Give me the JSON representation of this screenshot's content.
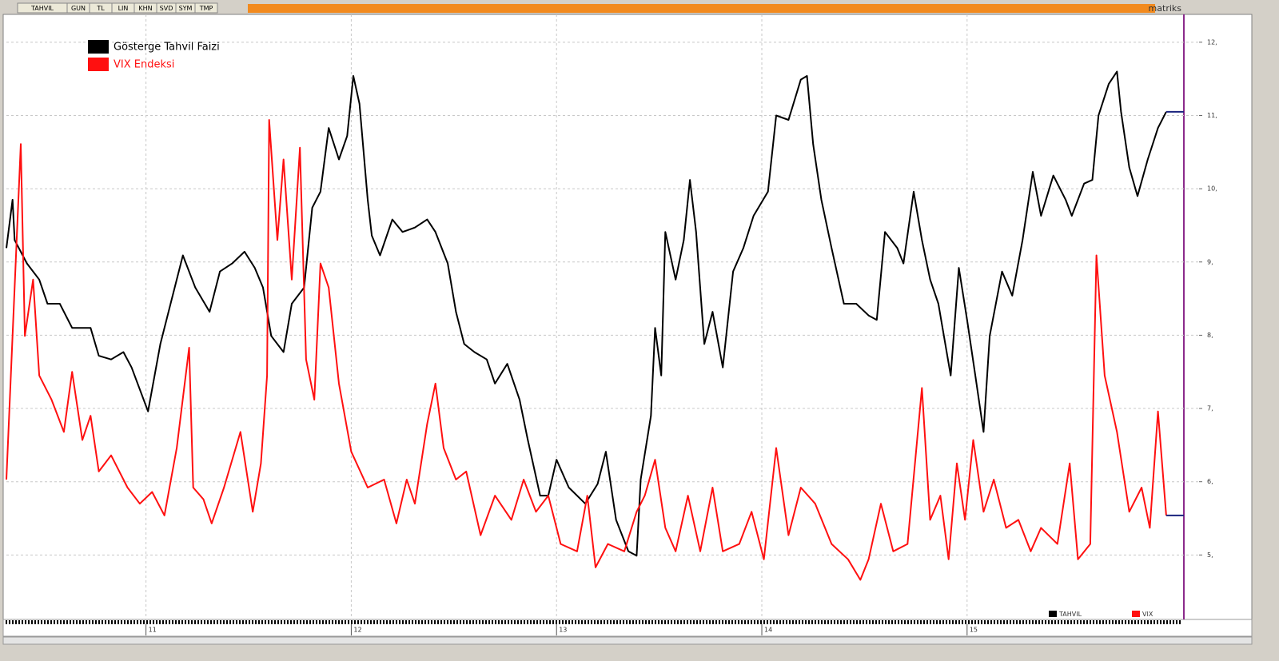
{
  "toolbar": {
    "buttons": [
      "TAHVIL",
      "GUN",
      "TL",
      "LIN",
      "KHN",
      "SVD",
      "SYM",
      "TMP"
    ],
    "brand": "matriks"
  },
  "chart_data": {
    "type": "line",
    "series": [
      {
        "name": "Gösterge Tahvil Faizi",
        "short_name": "TAHVIL",
        "color": "#000000",
        "x": [
          10.32,
          10.35,
          10.36,
          10.42,
          10.48,
          10.52,
          10.58,
          10.64,
          10.73,
          10.77,
          10.83,
          10.89,
          10.93,
          11.01,
          11.07,
          11.12,
          11.18,
          11.24,
          11.31,
          11.36,
          11.42,
          11.48,
          11.53,
          11.57,
          11.61,
          11.67,
          11.71,
          11.77,
          11.81,
          11.85,
          11.89,
          11.94,
          11.98,
          12.01,
          12.04,
          12.08,
          12.1,
          12.14,
          12.2,
          12.25,
          12.31,
          12.37,
          12.41,
          12.47,
          12.51,
          12.55,
          12.6,
          12.66,
          12.7,
          12.76,
          12.82,
          12.86,
          12.92,
          12.96,
          13.0,
          13.06,
          13.14,
          13.2,
          13.24,
          13.29,
          13.35,
          13.39,
          13.41,
          13.46,
          13.48,
          13.51,
          13.53,
          13.58,
          13.62,
          13.65,
          13.68,
          13.72,
          13.76,
          13.81,
          13.86,
          13.91,
          13.96,
          14.03,
          14.07,
          14.13,
          14.19,
          14.22,
          14.25,
          14.29,
          14.34,
          14.4,
          14.46,
          14.52,
          14.56,
          14.6,
          14.66,
          14.69,
          14.74,
          14.78,
          14.82,
          14.86,
          14.92,
          14.96,
          15.0,
          15.04,
          15.08,
          15.11,
          15.17,
          15.22,
          15.27,
          15.32,
          15.36,
          15.42,
          15.48,
          15.51,
          15.57,
          15.61,
          15.64,
          15.69,
          15.73,
          15.75,
          15.79,
          15.83,
          15.88,
          15.93,
          15.97
        ],
        "values": [
          9.19,
          9.85,
          9.3,
          8.98,
          8.76,
          8.43,
          8.43,
          8.1,
          8.1,
          7.72,
          7.67,
          7.77,
          7.56,
          6.96,
          7.88,
          8.43,
          9.09,
          8.65,
          8.32,
          8.87,
          8.98,
          9.14,
          8.92,
          8.65,
          7.99,
          7.77,
          8.43,
          8.65,
          9.74,
          9.96,
          10.83,
          10.4,
          10.72,
          11.54,
          11.16,
          9.85,
          9.36,
          9.09,
          9.58,
          9.41,
          9.47,
          9.58,
          9.41,
          8.98,
          8.32,
          7.88,
          7.77,
          7.67,
          7.34,
          7.61,
          7.12,
          6.57,
          5.81,
          5.81,
          6.3,
          5.92,
          5.7,
          5.97,
          6.41,
          5.48,
          5.05,
          4.99,
          6.03,
          6.9,
          8.1,
          7.45,
          9.41,
          8.76,
          9.3,
          10.12,
          9.41,
          7.88,
          8.32,
          7.56,
          8.87,
          9.19,
          9.63,
          9.96,
          11.0,
          10.94,
          11.49,
          11.54,
          10.61,
          9.85,
          9.19,
          8.43,
          8.43,
          8.27,
          8.21,
          9.41,
          9.19,
          8.98,
          9.96,
          9.3,
          8.76,
          8.43,
          7.45,
          8.92,
          8.21,
          7.45,
          6.68,
          7.99,
          8.87,
          8.54,
          9.3,
          10.23,
          9.63,
          10.18,
          9.85,
          9.63,
          10.07,
          10.12,
          11.0,
          11.43,
          11.6,
          11.05,
          10.29,
          9.9,
          10.4,
          10.83,
          11.05
        ]
      },
      {
        "name": "VIX Endeksi",
        "short_name": "VIX",
        "color": "#ff1010",
        "x": [
          10.32,
          10.35,
          10.39,
          10.41,
          10.45,
          10.48,
          10.54,
          10.6,
          10.64,
          10.69,
          10.73,
          10.77,
          10.83,
          10.91,
          10.97,
          11.03,
          11.09,
          11.15,
          11.21,
          11.23,
          11.28,
          11.32,
          11.38,
          11.46,
          11.52,
          11.56,
          11.59,
          11.6,
          11.64,
          11.67,
          11.71,
          11.75,
          11.78,
          11.82,
          11.85,
          11.89,
          11.94,
          12.0,
          12.08,
          12.16,
          12.22,
          12.27,
          12.31,
          12.37,
          12.41,
          12.45,
          12.51,
          12.56,
          12.63,
          12.7,
          12.78,
          12.84,
          12.9,
          12.96,
          13.02,
          13.1,
          13.15,
          13.19,
          13.25,
          13.33,
          13.39,
          13.43,
          13.48,
          13.53,
          13.58,
          13.64,
          13.7,
          13.76,
          13.81,
          13.89,
          13.95,
          14.01,
          14.07,
          14.13,
          14.19,
          14.26,
          14.34,
          14.42,
          14.48,
          14.52,
          14.58,
          14.64,
          14.71,
          14.78,
          14.82,
          14.87,
          14.91,
          14.95,
          14.99,
          15.03,
          15.08,
          15.13,
          15.19,
          15.25,
          15.31,
          15.36,
          15.44,
          15.5,
          15.54,
          15.6,
          15.63,
          15.67,
          15.73,
          15.79,
          15.85,
          15.89,
          15.93,
          15.97
        ],
        "values": [
          6.03,
          7.99,
          10.61,
          7.99,
          8.76,
          7.45,
          7.12,
          6.68,
          7.5,
          6.57,
          6.9,
          6.14,
          6.36,
          5.92,
          5.7,
          5.86,
          5.54,
          6.46,
          7.83,
          5.92,
          5.76,
          5.43,
          5.92,
          6.68,
          5.59,
          6.25,
          7.45,
          10.94,
          9.3,
          10.4,
          8.76,
          10.56,
          7.67,
          7.12,
          8.98,
          8.65,
          7.34,
          6.41,
          5.92,
          6.03,
          5.43,
          6.03,
          5.7,
          6.79,
          7.34,
          6.46,
          6.03,
          6.14,
          5.27,
          5.81,
          5.48,
          6.03,
          5.59,
          5.81,
          5.15,
          5.05,
          5.81,
          4.83,
          5.15,
          5.05,
          5.59,
          5.81,
          6.3,
          5.37,
          5.05,
          5.81,
          5.05,
          5.92,
          5.05,
          5.15,
          5.59,
          4.94,
          6.46,
          5.27,
          5.92,
          5.7,
          5.15,
          4.94,
          4.66,
          4.94,
          5.7,
          5.05,
          5.15,
          7.28,
          5.48,
          5.81,
          4.94,
          6.25,
          5.48,
          6.57,
          5.59,
          6.03,
          5.37,
          5.48,
          5.05,
          5.37,
          5.15,
          6.25,
          4.94,
          5.15,
          9.09,
          7.45,
          6.68,
          5.59,
          5.92,
          5.37,
          6.96,
          5.54
        ]
      }
    ],
    "xlim": [
      10.32,
      16.13
    ],
    "xticks": [
      11,
      12,
      13,
      14,
      15
    ],
    "ylim": [
      4.12,
      12.38
    ],
    "yticks": [
      {
        "value": 5,
        "label": "5,"
      },
      {
        "value": 6,
        "label": "6,"
      },
      {
        "value": 7,
        "label": "7,"
      },
      {
        "value": 8,
        "label": "8,"
      },
      {
        "value": 9,
        "label": "9,"
      },
      {
        "value": 10,
        "label": "10,"
      },
      {
        "value": 11,
        "label": "11,"
      },
      {
        "value": 12,
        "label": "12,"
      }
    ],
    "grid": true
  }
}
